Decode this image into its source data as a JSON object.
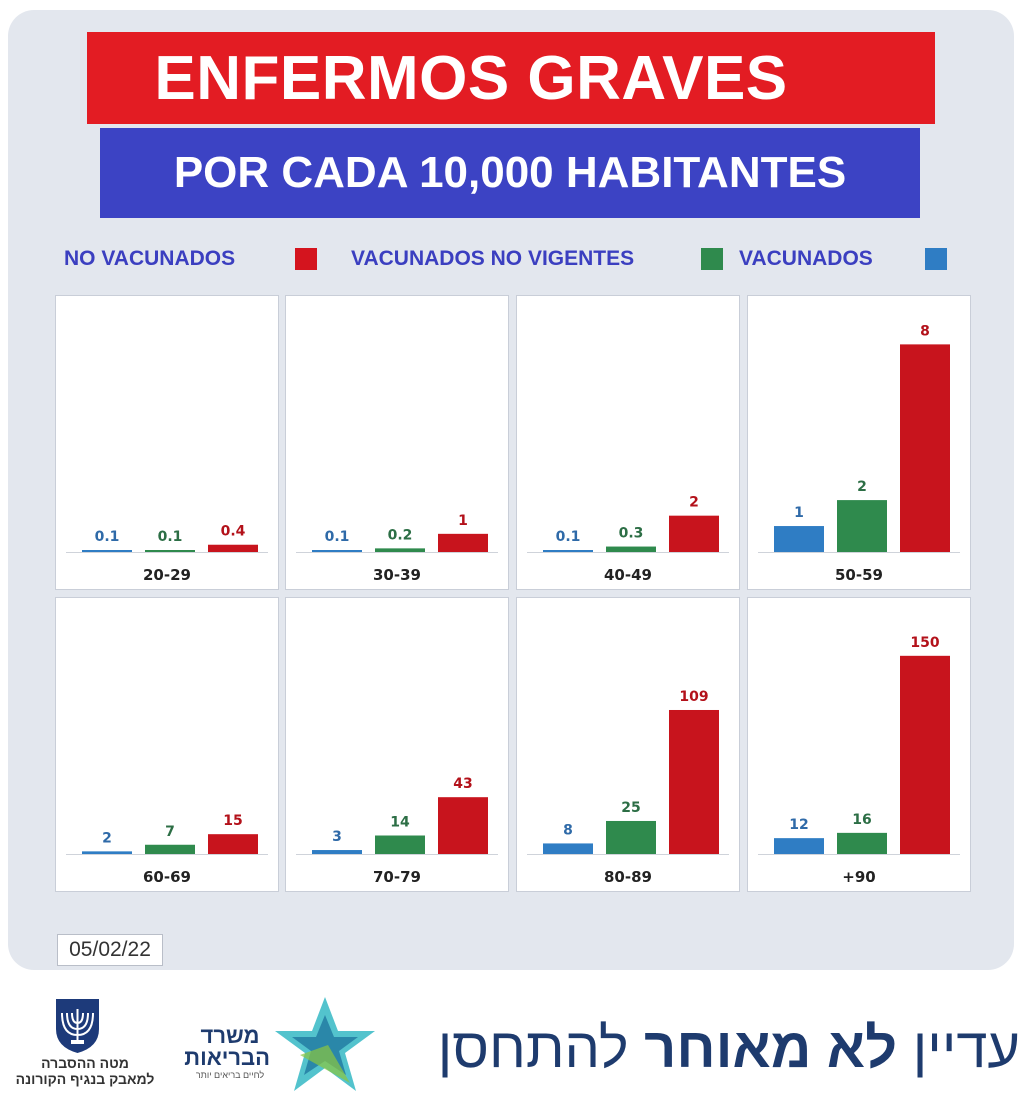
{
  "title": "ENFERMOS GRAVES",
  "subtitle": "POR CADA 10,000 HABITANTES",
  "legend": [
    {
      "label": "NO VACUNADOS",
      "color": "#d4141e"
    },
    {
      "label": "VACUNADOS NO VIGENTES",
      "color": "#2f8a4d"
    },
    {
      "label": "VACUNADOS",
      "color": "#2f7dc4"
    }
  ],
  "colors": {
    "vacunados": "#2f7dc4",
    "no_vigentes": "#2f8a4d",
    "no_vacunados": "#c8141d",
    "label_red": "#b3111a",
    "label_green": "#2c6e45",
    "label_blue": "#2f6aa8"
  },
  "date": "05/02/22",
  "chart_data": {
    "type": "bar",
    "series_order": [
      "VACUNADOS",
      "VACUNADOS NO VIGENTES",
      "NO VACUNADOS"
    ],
    "panels": [
      {
        "category": "20-29",
        "values": [
          0.1,
          0.1,
          0.4
        ],
        "labels": [
          "0.1",
          "0.1",
          "0.4"
        ],
        "ymax": 12
      },
      {
        "category": "30-39",
        "values": [
          0.1,
          0.2,
          1
        ],
        "labels": [
          "0.1",
          "0.2",
          "1"
        ],
        "ymax": 12
      },
      {
        "category": "40-49",
        "values": [
          0.1,
          0.3,
          2
        ],
        "labels": [
          "0.1",
          "0.3",
          "2"
        ],
        "ymax": 12
      },
      {
        "category": "50-59",
        "values": [
          1,
          2,
          8
        ],
        "labels": [
          "1",
          "2",
          "8"
        ],
        "ymax": 8.4
      },
      {
        "category": "60-69",
        "values": [
          2,
          7,
          15
        ],
        "labels": [
          "2",
          "7",
          "15"
        ],
        "ymax": 165
      },
      {
        "category": "70-79",
        "values": [
          3,
          14,
          43
        ],
        "labels": [
          "3",
          "14",
          "43"
        ],
        "ymax": 165
      },
      {
        "category": "80-89",
        "values": [
          8,
          25,
          109
        ],
        "labels": [
          "8",
          "25",
          "109"
        ],
        "ymax": 165
      },
      {
        "category": "+90",
        "values": [
          12,
          16,
          150
        ],
        "labels": [
          "12",
          "16",
          "150"
        ],
        "ymax": 165
      }
    ]
  },
  "footer": {
    "org_line1": "מטה ההסברה",
    "org_line2": "למאבק בנגיף הקורונה",
    "ministry_line1": "משרד",
    "ministry_line2": "הבריאות",
    "ministry_sub": "לחיים בריאים יותר",
    "slogan_part1": "עדיין",
    "slogan_part2": "לא מאוחר",
    "slogan_part3": "להתחסן"
  }
}
